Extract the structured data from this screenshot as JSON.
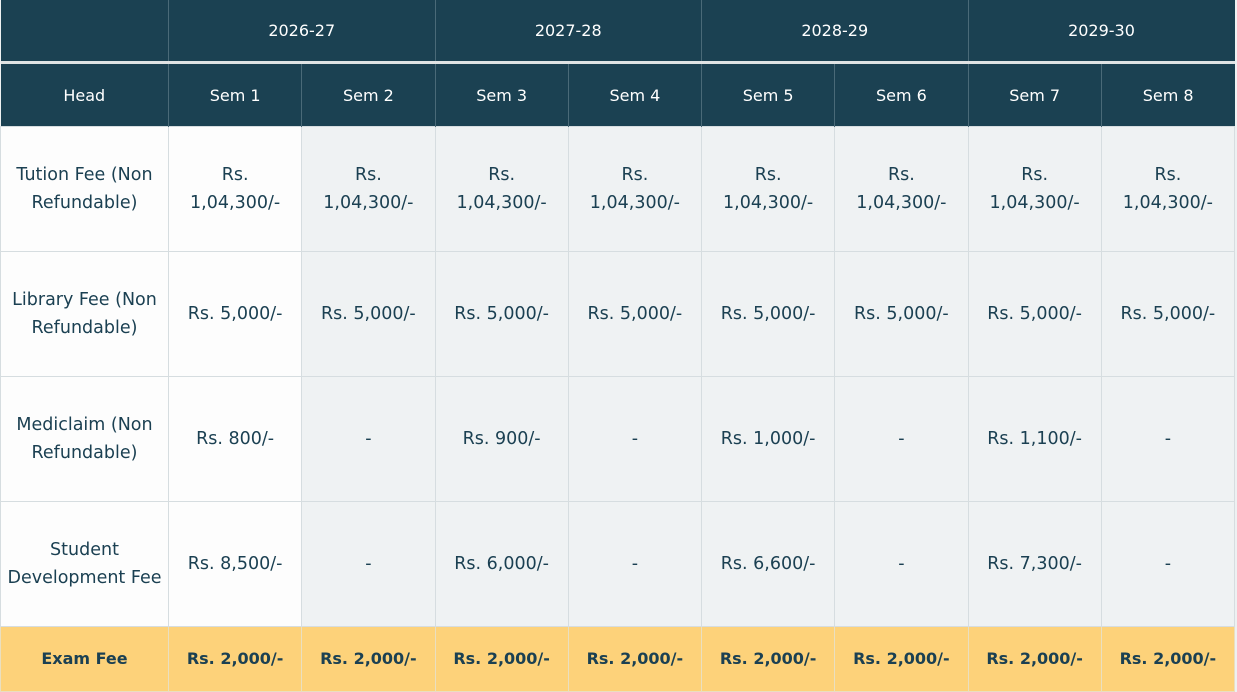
{
  "header": {
    "years": [
      "",
      "2026-27",
      "2027-28",
      "2028-29",
      "2029-30"
    ],
    "columns": [
      "Head",
      "Sem 1",
      "Sem 2",
      "Sem 3",
      "Sem 4",
      "Sem 5",
      "Sem 6",
      "Sem 7",
      "Sem 8"
    ]
  },
  "rows": [
    {
      "head": "Tution Fee (Non Refundable)",
      "values": [
        "Rs. 1,04,300/-",
        "Rs. 1,04,300/-",
        "Rs. 1,04,300/-",
        "Rs. 1,04,300/-",
        "Rs. 1,04,300/-",
        "Rs. 1,04,300/-",
        "Rs. 1,04,300/-",
        "Rs. 1,04,300/-"
      ]
    },
    {
      "head": "Library Fee (Non Refundable)",
      "values": [
        "Rs. 5,000/-",
        "Rs. 5,000/-",
        "Rs. 5,000/-",
        "Rs. 5,000/-",
        "Rs. 5,000/-",
        "Rs. 5,000/-",
        "Rs. 5,000/-",
        "Rs. 5,000/-"
      ]
    },
    {
      "head": "Mediclaim (Non Refundable)",
      "values": [
        "Rs. 800/-",
        "-",
        "Rs. 900/-",
        "-",
        "Rs. 1,000/-",
        "-",
        "Rs. 1,100/-",
        "-"
      ]
    },
    {
      "head": "Student Development Fee",
      "values": [
        "Rs. 8,500/-",
        "-",
        "Rs. 6,000/-",
        "-",
        "Rs. 6,600/-",
        "-",
        "Rs. 7,300/-",
        "-"
      ]
    },
    {
      "head": "Exam Fee",
      "values": [
        "Rs. 2,000/-",
        "Rs. 2,000/-",
        "Rs. 2,000/-",
        "Rs. 2,000/-",
        "Rs. 2,000/-",
        "Rs. 2,000/-",
        "Rs. 2,000/-",
        "Rs. 2,000/-"
      ]
    }
  ],
  "colors": {
    "header_bg": "#1b4152",
    "text": "#1b4052",
    "exam_row_bg": "#fdd27a",
    "cell_bg": "#eff2f3"
  }
}
